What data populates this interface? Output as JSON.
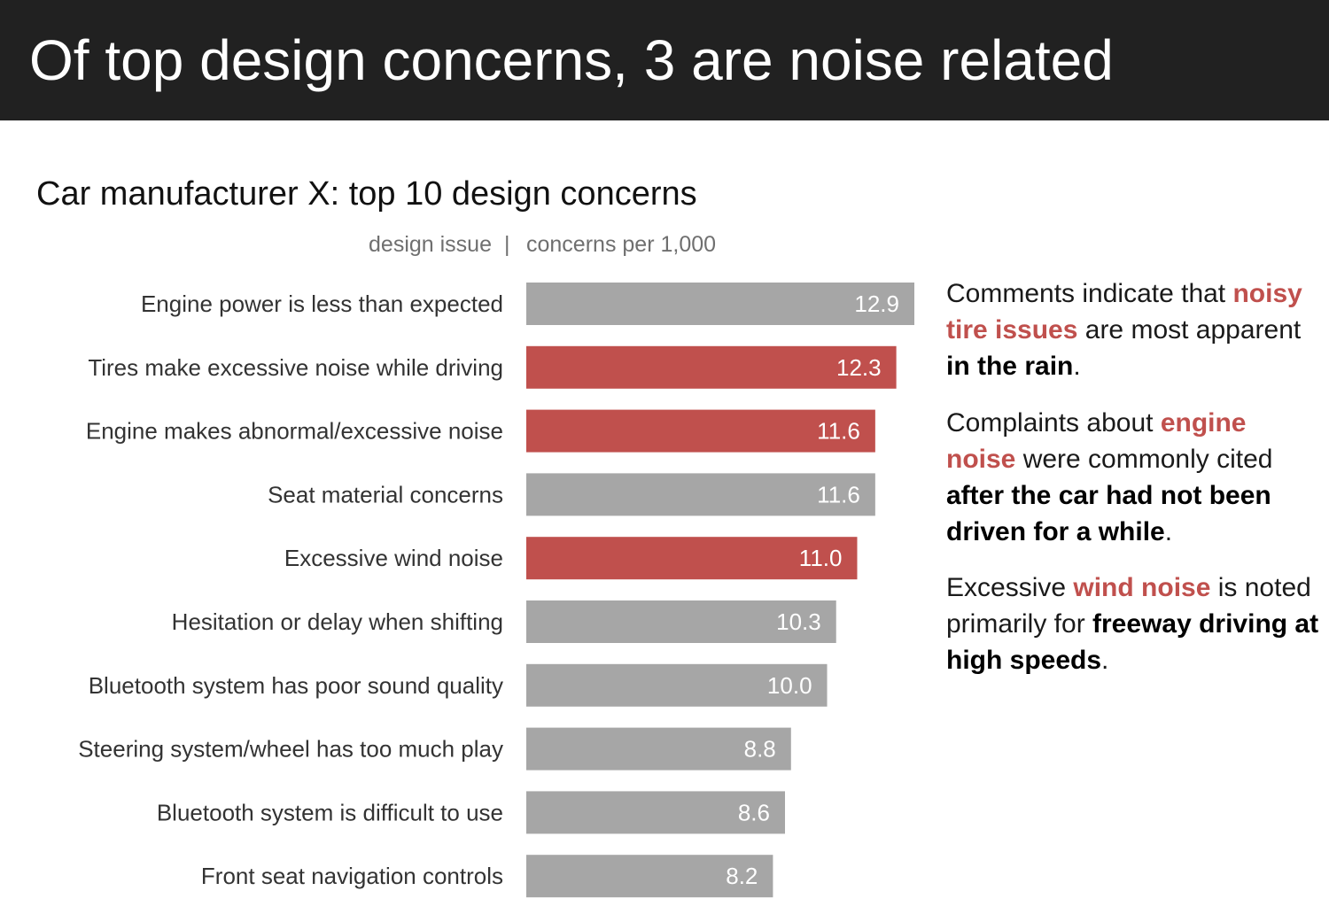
{
  "header": {
    "title": "Of top design concerns, 3 are noise related"
  },
  "colors": {
    "highlight": "#c0504d",
    "neutral": "#a6a6a6",
    "header_bg": "#212121"
  },
  "chart_data": {
    "type": "bar",
    "orientation": "horizontal",
    "title": "Car manufacturer X: top 10 design concerns",
    "category_header": "design issue",
    "header_separator": "|",
    "value_header": "concerns per 1,000",
    "grid": false,
    "legend": "none",
    "xlim": [
      0,
      12.9
    ],
    "categories": [
      "Engine power is less than expected",
      "Tires make excessive noise while driving",
      "Engine makes abnormal/excessive noise",
      "Seat material concerns",
      "Excessive wind noise",
      "Hesitation or delay when shifting",
      "Bluetooth system has poor sound quality",
      "Steering system/wheel has too much play",
      "Bluetooth system is difficult to use",
      "Front seat navigation controls"
    ],
    "values": [
      12.9,
      12.3,
      11.6,
      11.6,
      11.0,
      10.3,
      10.0,
      8.8,
      8.6,
      8.2
    ],
    "value_labels": [
      "12.9",
      "12.3",
      "11.6",
      "11.6",
      "11.0",
      "10.3",
      "10.0",
      "8.8",
      "8.6",
      "8.2"
    ],
    "highlighted": [
      false,
      true,
      true,
      false,
      true,
      false,
      false,
      false,
      false,
      false
    ]
  },
  "annotations": [
    {
      "segments": [
        {
          "text": "Comments indicate that ",
          "style": "normal"
        },
        {
          "text": "noisy tire issues",
          "style": "highlight"
        },
        {
          "text": " are most apparent ",
          "style": "normal"
        },
        {
          "text": "in the rain",
          "style": "bold"
        },
        {
          "text": ".",
          "style": "normal"
        }
      ]
    },
    {
      "segments": [
        {
          "text": "Complaints about ",
          "style": "normal"
        },
        {
          "text": "engine noise",
          "style": "highlight"
        },
        {
          "text": " were commonly cited ",
          "style": "normal"
        },
        {
          "text": "after the car had not been driven for a while",
          "style": "bold"
        },
        {
          "text": ".",
          "style": "normal"
        }
      ]
    },
    {
      "segments": [
        {
          "text": "Excessive ",
          "style": "normal"
        },
        {
          "text": "wind noise",
          "style": "highlight"
        },
        {
          "text": " is noted primarily for ",
          "style": "normal"
        },
        {
          "text": "freeway driving at high speeds",
          "style": "bold"
        },
        {
          "text": ".",
          "style": "normal"
        }
      ]
    }
  ]
}
